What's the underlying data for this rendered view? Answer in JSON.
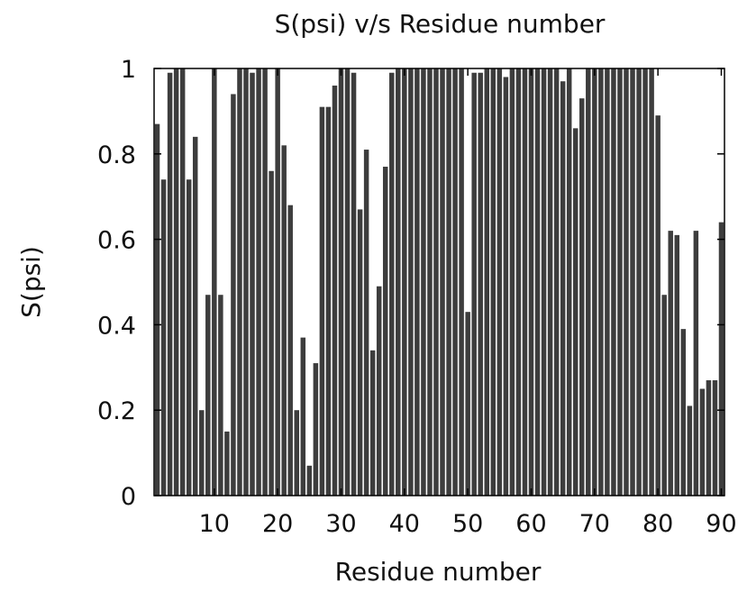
{
  "chart_data": {
    "type": "bar",
    "title": "S(psi) v/s Residue number",
    "xlabel": "Residue number",
    "ylabel": "S(psi)",
    "xlim": [
      0.5,
      90.5
    ],
    "ylim": [
      0,
      1
    ],
    "x_ticks": [
      10,
      20,
      30,
      40,
      50,
      60,
      70,
      80,
      90
    ],
    "x_tick_labels": [
      "10",
      "20",
      "30",
      "40",
      "50",
      "60",
      "70",
      "80",
      "90"
    ],
    "y_ticks": [
      0,
      0.2,
      0.4,
      0.6,
      0.8,
      1
    ],
    "y_tick_labels": [
      "0",
      "0.2",
      "0.4",
      "0.6",
      "0.8",
      "1"
    ],
    "grid": false,
    "bar_color": "#3d3d3d",
    "series": [
      {
        "x": [
          1,
          2,
          3,
          4,
          5,
          6,
          7,
          8,
          9,
          10,
          11,
          12,
          13,
          14,
          15,
          16,
          17,
          18,
          19,
          20,
          21,
          22,
          23,
          24,
          25,
          26,
          27,
          28,
          29,
          30,
          31,
          32,
          33,
          34,
          35,
          36,
          37,
          38,
          39,
          40,
          41,
          42,
          43,
          44,
          45,
          46,
          47,
          48,
          49,
          50,
          51,
          52,
          53,
          54,
          55,
          56,
          57,
          58,
          59,
          60,
          61,
          62,
          63,
          64,
          65,
          66,
          67,
          68,
          69,
          70,
          71,
          72,
          73,
          74,
          75,
          76,
          77,
          78,
          79,
          80,
          81,
          82,
          83,
          84,
          85,
          86,
          87,
          88,
          89,
          90
        ],
        "values": [
          0.87,
          0.74,
          0.99,
          1.0,
          1.0,
          0.74,
          0.84,
          0.2,
          0.47,
          1.0,
          0.47,
          0.15,
          0.94,
          1.0,
          1.0,
          0.99,
          1.0,
          1.0,
          0.76,
          1.0,
          0.82,
          0.68,
          0.2,
          0.37,
          0.07,
          0.31,
          0.91,
          0.91,
          0.96,
          1.0,
          1.0,
          0.99,
          0.67,
          0.81,
          0.34,
          0.49,
          0.77,
          0.99,
          1.0,
          1.0,
          1.0,
          1.0,
          1.0,
          1.0,
          1.0,
          1.0,
          1.0,
          1.0,
          1.0,
          0.43,
          0.99,
          0.99,
          1.0,
          1.0,
          1.0,
          0.98,
          1.0,
          1.0,
          1.0,
          1.0,
          1.0,
          1.0,
          1.0,
          1.0,
          0.97,
          1.0,
          0.86,
          0.93,
          1.0,
          1.0,
          1.0,
          1.0,
          1.0,
          1.0,
          1.0,
          1.0,
          1.0,
          1.0,
          1.0,
          0.89,
          0.47,
          0.62,
          0.61,
          0.39,
          0.21,
          0.62,
          0.25,
          0.27,
          0.27,
          0.64
        ]
      }
    ]
  }
}
